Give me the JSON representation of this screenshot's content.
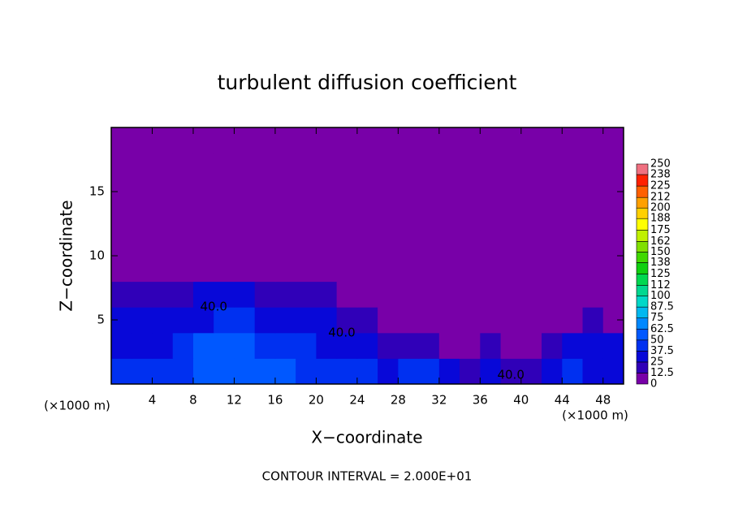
{
  "chart_data": {
    "type": "heatmap",
    "title": "turbulent diffusion coefficient",
    "x_label": "X−coordinate",
    "y_label": "Z−coordinate",
    "x_unit": "(×1000 m)",
    "footer": "CONTOUR INTERVAL = 2.000E+01",
    "xlim": [
      0,
      50
    ],
    "xticks": [
      4,
      8,
      12,
      16,
      20,
      24,
      28,
      32,
      36,
      40,
      44,
      48
    ],
    "ylim": [
      0,
      20
    ],
    "yticks": [
      5,
      10,
      15
    ],
    "x": [
      1,
      3,
      5,
      7,
      9,
      11,
      13,
      15,
      17,
      19,
      21,
      23,
      25,
      27,
      29,
      31,
      33,
      35,
      37,
      39,
      41,
      43,
      45,
      47,
      49
    ],
    "y": [
      1,
      3,
      5,
      7,
      9,
      11,
      13,
      15,
      17,
      19
    ],
    "z": [
      [
        45,
        40,
        42,
        48,
        50,
        55,
        60,
        55,
        50,
        45,
        42,
        40,
        38,
        35,
        40,
        45,
        30,
        20,
        25,
        15,
        18,
        30,
        40,
        35,
        30
      ],
      [
        35,
        30,
        30,
        45,
        50,
        55,
        50,
        45,
        45,
        40,
        35,
        30,
        25,
        20,
        15,
        15,
        10,
        10,
        20,
        12,
        10,
        15,
        30,
        35,
        25
      ],
      [
        30,
        25,
        28,
        30,
        35,
        40,
        40,
        35,
        30,
        25,
        25,
        20,
        15,
        10,
        8,
        5,
        5,
        5,
        8,
        10,
        8,
        5,
        10,
        15,
        10
      ],
      [
        15,
        18,
        15,
        15,
        25,
        30,
        25,
        20,
        20,
        18,
        15,
        12,
        10,
        8,
        5,
        5,
        5,
        5,
        5,
        5,
        5,
        5,
        5,
        5,
        5
      ],
      [
        5,
        5,
        5,
        5,
        5,
        8,
        10,
        8,
        5,
        5,
        5,
        5,
        5,
        5,
        5,
        5,
        5,
        5,
        5,
        5,
        5,
        5,
        5,
        5,
        5
      ],
      [
        5,
        5,
        5,
        5,
        5,
        5,
        5,
        5,
        5,
        5,
        5,
        5,
        5,
        5,
        5,
        5,
        5,
        5,
        5,
        5,
        5,
        5,
        5,
        5,
        5
      ],
      [
        5,
        5,
        5,
        5,
        5,
        5,
        5,
        5,
        5,
        5,
        5,
        5,
        5,
        5,
        5,
        5,
        5,
        5,
        5,
        5,
        5,
        5,
        5,
        5,
        5
      ],
      [
        5,
        5,
        5,
        5,
        5,
        5,
        5,
        5,
        5,
        5,
        5,
        5,
        5,
        5,
        5,
        5,
        5,
        5,
        5,
        5,
        5,
        5,
        5,
        5,
        5
      ],
      [
        5,
        5,
        5,
        5,
        5,
        5,
        5,
        5,
        5,
        5,
        5,
        5,
        5,
        5,
        5,
        5,
        5,
        5,
        5,
        5,
        5,
        5,
        5,
        5,
        5
      ],
      [
        5,
        5,
        5,
        5,
        5,
        5,
        5,
        5,
        5,
        5,
        5,
        5,
        5,
        5,
        5,
        5,
        5,
        5,
        5,
        5,
        5,
        5,
        5,
        5,
        5
      ]
    ],
    "annotations": [
      {
        "text": "40.0",
        "x": 10,
        "y": 6
      },
      {
        "text": "40.0",
        "x": 22.5,
        "y": 4
      },
      {
        "text": "40.0",
        "x": 39,
        "y": 0.7
      }
    ],
    "colorbar": {
      "lim": [
        0,
        250
      ],
      "ticks": [
        0,
        12.5,
        25,
        37.5,
        50,
        62.5,
        75,
        87.5,
        100,
        112,
        125,
        138,
        150,
        162,
        175,
        188,
        200,
        212,
        225,
        238,
        250
      ],
      "colors": [
        "#7800a8",
        "#3000b8",
        "#0808d8",
        "#0030f0",
        "#0058ff",
        "#0088ff",
        "#00b8f0",
        "#00d8c8",
        "#00d890",
        "#00d850",
        "#10d010",
        "#40d800",
        "#80e000",
        "#c0f000",
        "#ffff00",
        "#ffd000",
        "#ffa000",
        "#ff6000",
        "#ff2000",
        "#f07080"
      ]
    }
  }
}
